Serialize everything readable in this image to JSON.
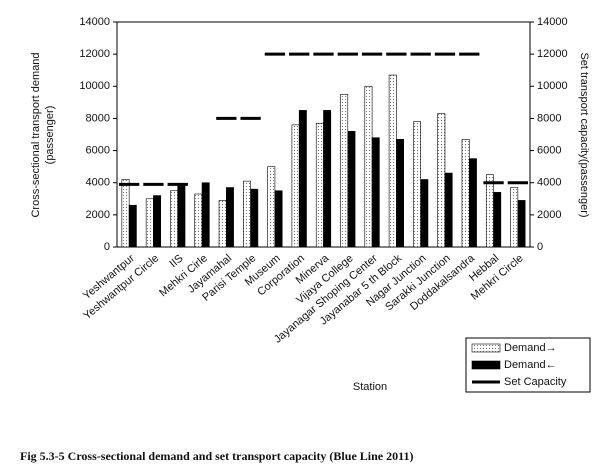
{
  "chart_data": {
    "type": "bar",
    "categories": [
      "Yeshwantpur",
      "Yeshwantpur Circle",
      "IIS",
      "Mehkri Cirle",
      "Jayamahal",
      "Parisi Temple",
      "Museum",
      "Corporation",
      "Minerva",
      "Vijaya College",
      "Jayanagar Shoping Center",
      "Jayanabar 5 th Block",
      "Nagar Junction",
      "Sarakki Junction",
      "Doddakalsandra",
      "Hebbal",
      "Mehkri Circle"
    ],
    "series": [
      {
        "name": "Demand→",
        "color": "#e6e6e6",
        "values": [
          4200,
          3000,
          3500,
          3300,
          2900,
          4100,
          5000,
          7600,
          7700,
          9500,
          10000,
          10700,
          7800,
          8300,
          6700,
          4500,
          3700
        ]
      },
      {
        "name": "Demand←",
        "color": "#000000",
        "values": [
          2600,
          3200,
          3800,
          4000,
          3700,
          3600,
          3500,
          8500,
          8500,
          7200,
          6800,
          6700,
          4200,
          4600,
          5500,
          3400,
          2900
        ]
      },
      {
        "name": "Set Capacity",
        "type": "line",
        "axis": "y2",
        "color": "#000000",
        "values": [
          3900,
          3900,
          3900,
          null,
          8000,
          8000,
          12000,
          12000,
          12000,
          12000,
          12000,
          12000,
          12000,
          12000,
          12000,
          4000,
          4000
        ]
      }
    ],
    "ylabel": [
      "Cross-sectional transport demand",
      "(passenger)"
    ],
    "y2label": "Set transport capacity(passenger)",
    "xlabel": "Station",
    "caption": "Fig 5.3-5 Cross-sectional demand and set transport capacity (Blue Line 2011)",
    "ylim": [
      0,
      14000
    ],
    "yticks": [
      0,
      2000,
      4000,
      6000,
      8000,
      10000,
      12000,
      14000
    ],
    "y2lim": [
      0,
      14000
    ],
    "y2ticks": [
      0,
      2000,
      4000,
      6000,
      8000,
      10000,
      12000,
      14000
    ],
    "grid": false,
    "legend": "bottom-right"
  }
}
